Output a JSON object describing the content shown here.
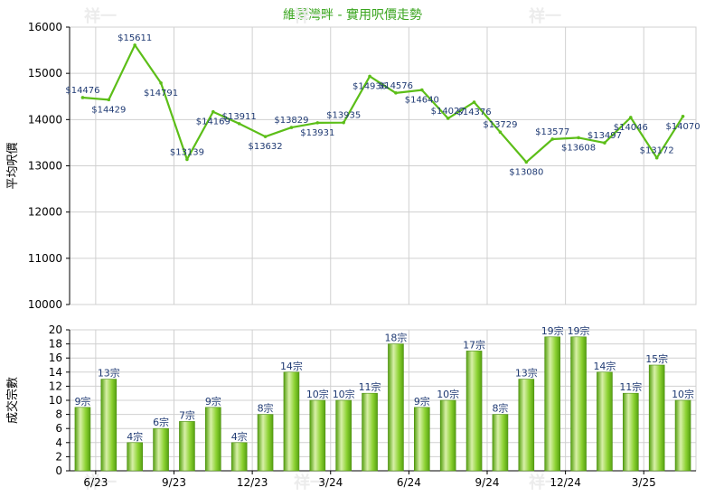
{
  "colors": {
    "title": "#3aa51f",
    "line": "#5cbe18",
    "bar_light": "#d8f0a8",
    "bar_mid": "#8cd232",
    "bar_dark": "#55a010",
    "grid": "#d0d0d0",
    "label": "#1f3a73"
  },
  "watermark": "祥一",
  "chart_data": [
    {
      "type": "line",
      "title": "維景灣畔 - 實用呎價走勢",
      "ylabel": "平均呎價",
      "ylim": [
        10000,
        16000
      ],
      "yticks": [
        10000,
        11000,
        12000,
        13000,
        14000,
        15000,
        16000
      ],
      "grid": true,
      "series": [
        {
          "values": [
            14476,
            14429,
            15611,
            14791,
            13139,
            14169,
            13911,
            13632,
            13829,
            13931,
            13935,
            14936,
            14576,
            14640,
            14027,
            14376,
            13729,
            13080,
            13577,
            13608,
            13497,
            14046,
            13172,
            14070
          ],
          "labels": [
            "$14476",
            "$14429",
            "$15611",
            "$14791",
            "$13139",
            "$14169",
            "$13911",
            "$13632",
            "$13829",
            "$13931",
            "$13935",
            "$14936",
            "$14576",
            "$14640",
            "$14027",
            "$14376",
            "$13729",
            "$13080",
            "$13577",
            "$13608",
            "$13497",
            "$14046",
            "$13172",
            "$14070"
          ]
        }
      ]
    },
    {
      "type": "bar",
      "ylabel": "成交宗數",
      "ylim": [
        0,
        20
      ],
      "yticks": [
        0,
        2,
        4,
        6,
        8,
        10,
        12,
        14,
        16,
        18,
        20
      ],
      "grid": true,
      "x_tick_labels": [
        "6/23",
        "9/23",
        "12/23",
        "3/24",
        "6/24",
        "9/24",
        "12/24",
        "3/25"
      ],
      "series": [
        {
          "values": [
            9,
            13,
            4,
            6,
            7,
            9,
            4,
            8,
            14,
            10,
            10,
            11,
            18,
            9,
            10,
            17,
            8,
            13,
            19,
            19,
            14,
            11,
            15,
            10
          ],
          "labels": [
            "9宗",
            "13宗",
            "4宗",
            "6宗",
            "7宗",
            "9宗",
            "4宗",
            "8宗",
            "14宗",
            "10宗",
            "10宗",
            "11宗",
            "18宗",
            "9宗",
            "10宗",
            "17宗",
            "8宗",
            "13宗",
            "19宗",
            "19宗",
            "14宗",
            "11宗",
            "15宗",
            "10宗"
          ]
        }
      ]
    }
  ]
}
